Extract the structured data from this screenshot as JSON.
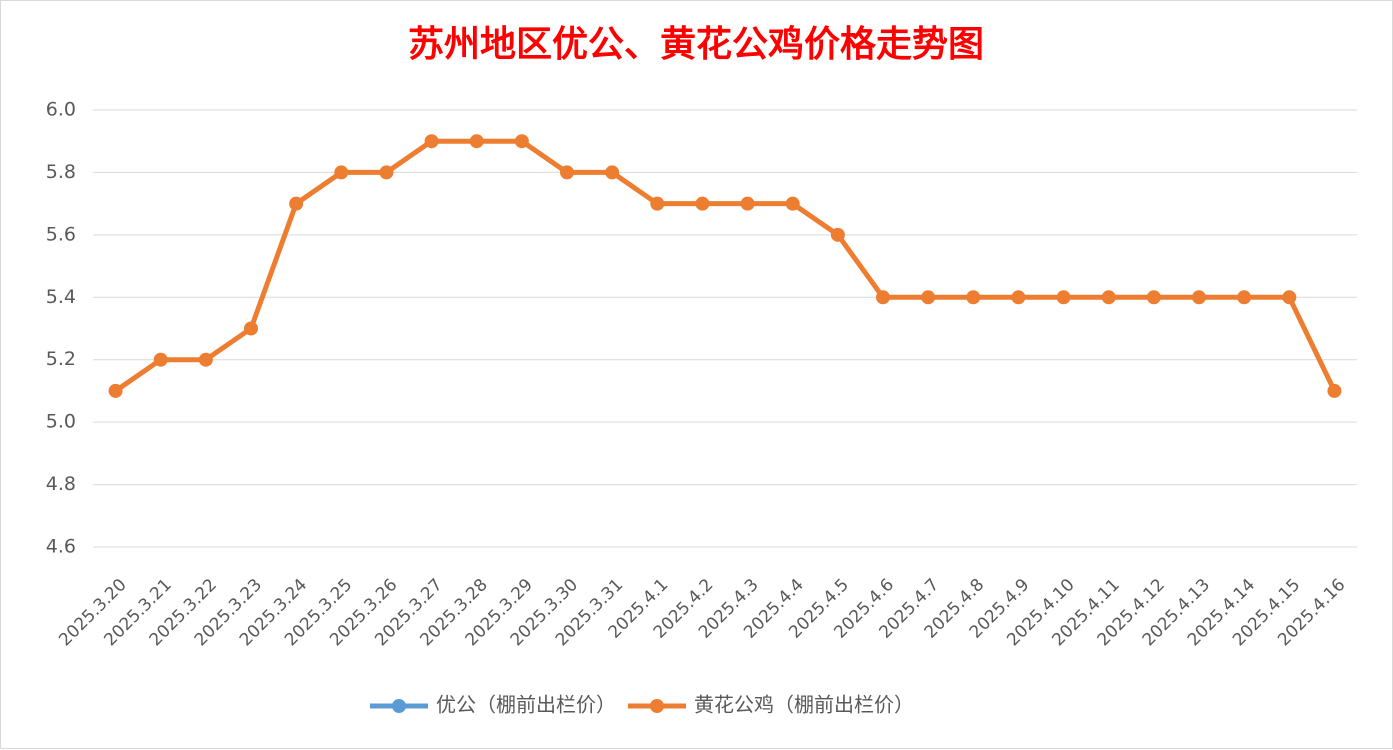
{
  "chart_data": {
    "type": "line",
    "title": "苏州地区优公、黄花公鸡价格走势图",
    "categories": [
      "2025.3.20",
      "2025.3.21",
      "2025.3.22",
      "2025.3.23",
      "2025.3.24",
      "2025.3.25",
      "2025.3.26",
      "2025.3.27",
      "2025.3.28",
      "2025.3.29",
      "2025.3.30",
      "2025.3.31",
      "2025.4.1",
      "2025.4.2",
      "2025.4.3",
      "2025.4.4",
      "2025.4.5",
      "2025.4.6",
      "2025.4.7",
      "2025.4.8",
      "2025.4.9",
      "2025.4.10",
      "2025.4.11",
      "2025.4.12",
      "2025.4.13",
      "2025.4.14",
      "2025.4.15",
      "2025.4.16"
    ],
    "series": [
      {
        "name": "优公（棚前出栏价）",
        "color": "#5b9bd5",
        "values": [
          null,
          null,
          null,
          null,
          null,
          null,
          null,
          null,
          null,
          null,
          null,
          null,
          null,
          null,
          null,
          null,
          null,
          null,
          null,
          null,
          null,
          null,
          null,
          null,
          null,
          null,
          null,
          null
        ]
      },
      {
        "name": "黄花公鸡（棚前出栏价）",
        "color": "#ed7d31",
        "values": [
          5.1,
          5.2,
          5.2,
          5.3,
          5.7,
          5.8,
          5.8,
          5.9,
          5.9,
          5.9,
          5.8,
          5.8,
          5.7,
          5.7,
          5.7,
          5.7,
          5.6,
          5.4,
          5.4,
          5.4,
          5.4,
          5.4,
          5.4,
          5.4,
          5.4,
          5.4,
          5.4,
          5.1
        ]
      }
    ],
    "ylim": [
      4.6,
      6.0
    ],
    "yticks": [
      4.6,
      4.8,
      {
        "value": 5.0,
        "label": "5.0"
      },
      5.2,
      5.4,
      5.6,
      5.8,
      {
        "value": 6.0,
        "label": "6.0"
      }
    ],
    "grid": true
  }
}
